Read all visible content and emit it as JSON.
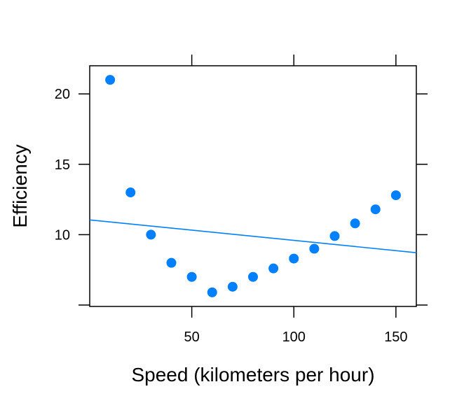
{
  "chart_data": {
    "type": "scatter",
    "xlabel": "Speed (kilometers per hour)",
    "ylabel": "Efficiency",
    "xlim": [
      0,
      160
    ],
    "ylim": [
      4.9,
      22.0
    ],
    "x_ticks": [
      50,
      100,
      150
    ],
    "y_ticks": [
      5,
      10,
      15,
      20
    ],
    "y_tick_labels_shown": [
      10,
      15,
      20
    ],
    "grid": false,
    "series": [
      {
        "color": "#0080ff",
        "x": [
          10,
          20,
          30,
          40,
          50,
          60,
          70,
          80,
          90,
          100,
          110,
          120,
          130,
          140,
          150
        ],
        "y": [
          21.0,
          13.0,
          10.0,
          8.0,
          7.0,
          5.9,
          6.3,
          7.0,
          7.6,
          8.3,
          9.0,
          9.9,
          10.8,
          11.8,
          12.8
        ]
      }
    ],
    "fit_line": {
      "color": "#0080ff",
      "x": [
        0,
        160
      ],
      "y": [
        11.05,
        8.72
      ]
    }
  }
}
